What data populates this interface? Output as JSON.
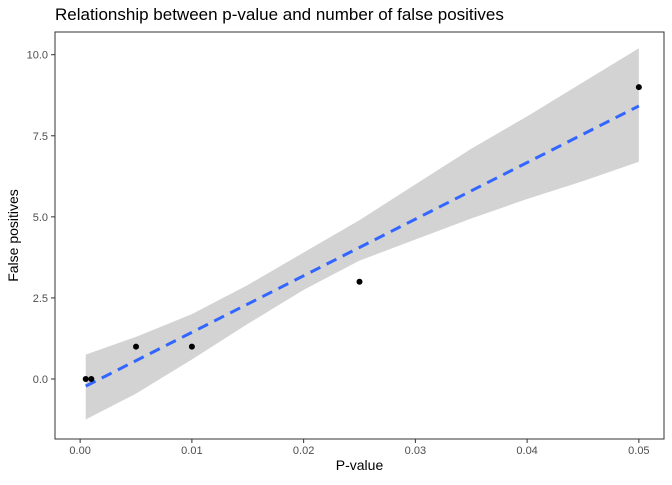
{
  "chart_data": {
    "type": "scatter",
    "title": "Relationship between p-value and number of false positives",
    "xlabel": "P-value",
    "ylabel": "False positives",
    "xlim": [
      -0.00225,
      0.05225
    ],
    "ylim": [
      -1.85,
      10.7
    ],
    "x_ticks": [
      0.0,
      0.01,
      0.02,
      0.03,
      0.04,
      0.05
    ],
    "x_tick_labels": [
      "0.00",
      "0.01",
      "0.02",
      "0.03",
      "0.04",
      "0.05"
    ],
    "y_ticks": [
      0.0,
      2.5,
      5.0,
      7.5,
      10.0
    ],
    "y_tick_labels": [
      "0.0",
      "2.5",
      "5.0",
      "7.5",
      "10.0"
    ],
    "grid": false,
    "legend": "none",
    "points": {
      "x": [
        0.0005,
        0.001,
        0.005,
        0.01,
        0.025,
        0.05
      ],
      "y": [
        0,
        0,
        1,
        1,
        3,
        9
      ]
    },
    "fit": {
      "method": "linear",
      "line": [
        [
          0.0005,
          -0.22
        ],
        [
          0.05,
          8.42
        ]
      ],
      "band_upper": [
        [
          0.0005,
          0.75
        ],
        [
          0.005,
          1.3
        ],
        [
          0.01,
          2.0
        ],
        [
          0.015,
          2.9
        ],
        [
          0.02,
          3.9
        ],
        [
          0.025,
          4.9
        ],
        [
          0.03,
          6.0
        ],
        [
          0.035,
          7.1
        ],
        [
          0.04,
          8.1
        ],
        [
          0.045,
          9.15
        ],
        [
          0.05,
          10.2
        ]
      ],
      "band_lower": [
        [
          0.0005,
          -1.25
        ],
        [
          0.005,
          -0.45
        ],
        [
          0.01,
          0.6
        ],
        [
          0.015,
          1.7
        ],
        [
          0.02,
          2.75
        ],
        [
          0.025,
          3.65
        ],
        [
          0.03,
          4.3
        ],
        [
          0.035,
          4.95
        ],
        [
          0.04,
          5.55
        ],
        [
          0.045,
          6.1
        ],
        [
          0.05,
          6.7
        ]
      ]
    },
    "colors": {
      "point": "#000000",
      "line": "#3366FF",
      "band": "#d3d3d3",
      "panel_border": "#333333",
      "tick": "#333333"
    }
  }
}
